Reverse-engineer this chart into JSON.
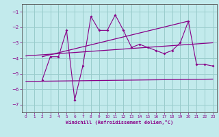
{
  "xlabel": "Windchill (Refroidissement éolien,°C)",
  "bg_color": "#c2eaec",
  "grid_color": "#99cccc",
  "line_color": "#880088",
  "xlim": [
    -0.5,
    23.5
  ],
  "ylim": [
    -7.5,
    -0.5
  ],
  "yticks": [
    -7,
    -6,
    -5,
    -4,
    -3,
    -2,
    -1
  ],
  "xticks": [
    0,
    1,
    2,
    3,
    4,
    5,
    6,
    7,
    8,
    9,
    10,
    11,
    12,
    13,
    14,
    15,
    16,
    17,
    18,
    19,
    20,
    21,
    22,
    23
  ],
  "scatter_x": [
    2,
    3,
    4,
    5,
    6,
    7,
    8,
    9,
    10,
    11,
    12,
    13,
    14,
    15,
    16,
    17,
    18,
    19,
    20,
    21,
    22,
    23
  ],
  "scatter_y": [
    -5.4,
    -3.9,
    -3.9,
    -2.2,
    -6.7,
    -4.5,
    -1.3,
    -2.2,
    -2.2,
    -1.2,
    -2.2,
    -3.3,
    -3.1,
    -3.3,
    -3.5,
    -3.7,
    -3.5,
    -3.0,
    -1.6,
    -4.4,
    -4.4,
    -4.5
  ],
  "line1_x": [
    0,
    23
  ],
  "line1_y": [
    -3.85,
    -3.0
  ],
  "line2_x": [
    0,
    23
  ],
  "line2_y": [
    -5.5,
    -5.35
  ],
  "line3_x": [
    2,
    20
  ],
  "line3_y": [
    -3.9,
    -1.6
  ]
}
